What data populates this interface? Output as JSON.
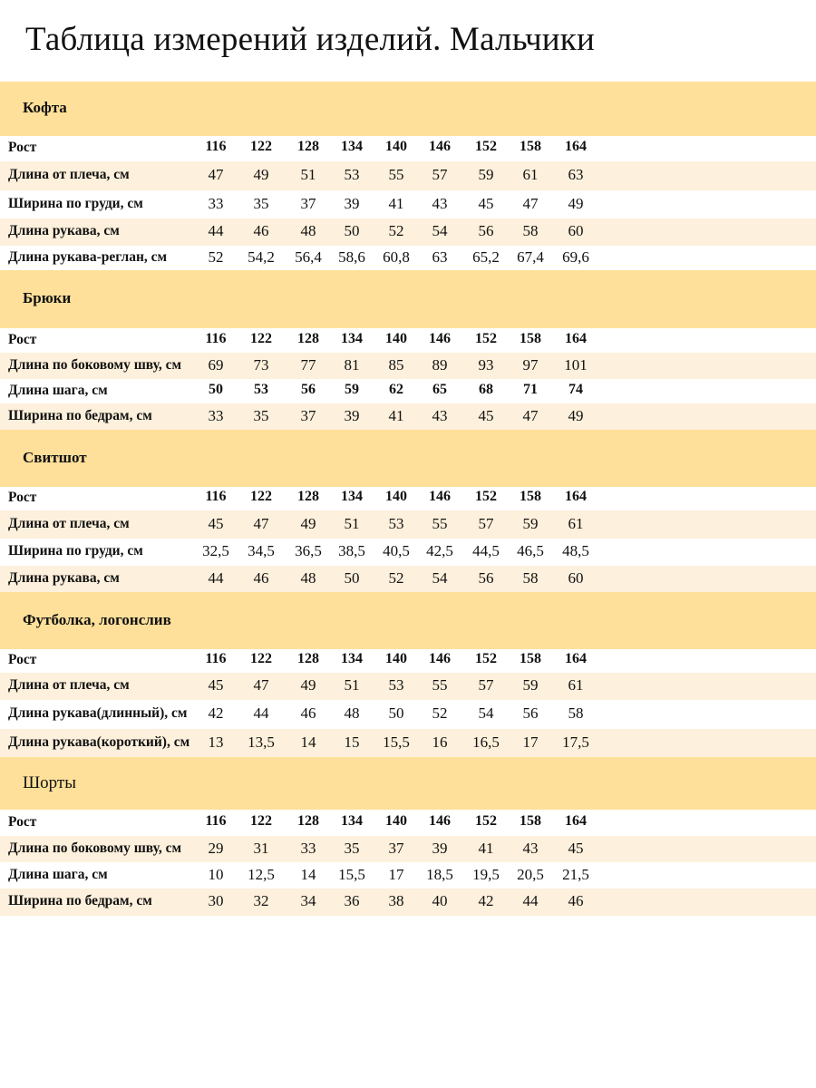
{
  "title": "Таблица измерений изделий. Мальчики",
  "colors": {
    "section_header": "#fee09a",
    "stripe": "#fdf0dc",
    "background": "#ffffff"
  },
  "sections": [
    {
      "name": "Кофта",
      "rows": [
        {
          "label": "Рост",
          "values": [
            "116",
            "122",
            "128",
            "134",
            "140",
            "146",
            "152",
            "158",
            "164"
          ]
        },
        {
          "label": "Длина от плеча, см",
          "values": [
            "47",
            "49",
            "51",
            "53",
            "55",
            "57",
            "59",
            "61",
            "63"
          ]
        },
        {
          "label": "Ширина по груди, см",
          "values": [
            "33",
            "35",
            "37",
            "39",
            "41",
            "43",
            "45",
            "47",
            "49"
          ]
        },
        {
          "label": "Длина рукава, см",
          "values": [
            "44",
            "46",
            "48",
            "50",
            "52",
            "54",
            "56",
            "58",
            "60"
          ]
        },
        {
          "label": "Длина рукава-реглан, см",
          "values": [
            "52",
            "54,2",
            "56,4",
            "58,6",
            "60,8",
            "63",
            "65,2",
            "67,4",
            "69,6"
          ]
        }
      ]
    },
    {
      "name": "Брюки",
      "rows": [
        {
          "label": "Рост",
          "values": [
            "116",
            "122",
            "128",
            "134",
            "140",
            "146",
            "152",
            "158",
            "164"
          ]
        },
        {
          "label": "Длина по боковому шву, см",
          "values": [
            "69",
            "73",
            "77",
            "81",
            "85",
            "89",
            "93",
            "97",
            "101"
          ]
        },
        {
          "label": "Длина шага, см",
          "values": [
            "50",
            "53",
            "56",
            "59",
            "62",
            "65",
            "68",
            "71",
            "74"
          ]
        },
        {
          "label": "Ширина по бедрам, см",
          "values": [
            "33",
            "35",
            "37",
            "39",
            "41",
            "43",
            "45",
            "47",
            "49"
          ]
        }
      ]
    },
    {
      "name": "Свитшот",
      "rows": [
        {
          "label": "Рост",
          "values": [
            "116",
            "122",
            "128",
            "134",
            "140",
            "146",
            "152",
            "158",
            "164"
          ]
        },
        {
          "label": "Длина от плеча, см",
          "values": [
            "45",
            "47",
            "49",
            "51",
            "53",
            "55",
            "57",
            "59",
            "61"
          ]
        },
        {
          "label": "Ширина по груди, см",
          "values": [
            "32,5",
            "34,5",
            "36,5",
            "38,5",
            "40,5",
            "42,5",
            "44,5",
            "46,5",
            "48,5"
          ]
        },
        {
          "label": "Длина рукава, см",
          "values": [
            "44",
            "46",
            "48",
            "50",
            "52",
            "54",
            "56",
            "58",
            "60"
          ]
        }
      ]
    },
    {
      "name": "Футболка, логонслив",
      "rows": [
        {
          "label": "Рост",
          "values": [
            "116",
            "122",
            "128",
            "134",
            "140",
            "146",
            "152",
            "158",
            "164"
          ]
        },
        {
          "label": "Длина от плеча, см",
          "values": [
            "45",
            "47",
            "49",
            "51",
            "53",
            "55",
            "57",
            "59",
            "61"
          ]
        },
        {
          "label": "Длина рукава(длинный), см",
          "values": [
            "42",
            "44",
            "46",
            "48",
            "50",
            "52",
            "54",
            "56",
            "58"
          ]
        },
        {
          "label": "Длина рукава(короткий), см",
          "values": [
            "13",
            "13,5",
            "14",
            "15",
            "15,5",
            "16",
            "16,5",
            "17",
            "17,5"
          ]
        }
      ]
    },
    {
      "name": "Шорты",
      "rows": [
        {
          "label": "Рост",
          "values": [
            "116",
            "122",
            "128",
            "134",
            "140",
            "146",
            "152",
            "158",
            "164"
          ]
        },
        {
          "label": "Длина по боковому шву, см",
          "values": [
            "29",
            "31",
            "33",
            "35",
            "37",
            "39",
            "41",
            "43",
            "45"
          ]
        },
        {
          "label": "Длина шага, см",
          "values": [
            "10",
            "12,5",
            "14",
            "15,5",
            "17",
            "18,5",
            "19,5",
            "20,5",
            "21,5"
          ]
        },
        {
          "label": "Ширина по бедрам, см",
          "values": [
            "30",
            "32",
            "34",
            "36",
            "38",
            "40",
            "42",
            "44",
            "46"
          ]
        }
      ]
    }
  ]
}
